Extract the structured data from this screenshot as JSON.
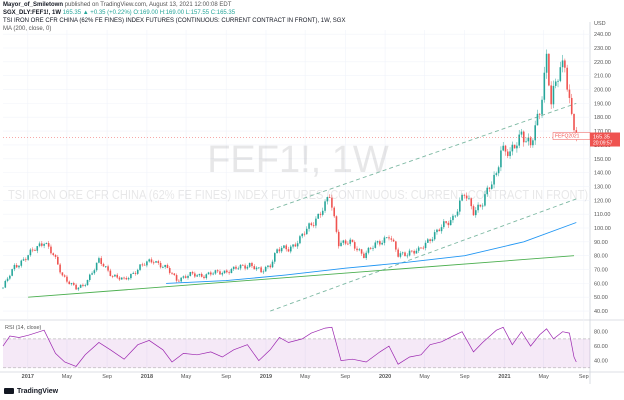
{
  "header": {
    "author": "Mayor_of_Smiletown",
    "published": "published on TradingView.com, August 13, 2021 12:00:08 EDT",
    "ticker_line": "SGX_DLY:FEF1!, 1W",
    "ohlc": "165.35 ▲ +0.35 (+0.22%) O:169.00 H:169.00 L:157.55 C:165.35",
    "title": "TSI IRON ORE CFR CHINA (62% FE FINES) INDEX FUTURES (CONTINUOUS: CURRENT CONTRACT IN FRONT), 1W, SGX",
    "ma_label": "MA (200, close, 0)",
    "rsi_label": "RSI (14, close)"
  },
  "watermark": {
    "symbol": "FEF1!, 1W",
    "name": "TSI IRON ORE CFR CHINA (62% FE FINES) INDEX FUTURES (CONTINUOUS: CURRENT CONTRACT IN FRONT)"
  },
  "footer": {
    "brand": "TradingView"
  },
  "chart_data": [
    {
      "type": "candlestick",
      "currency": "USD",
      "ylim": [
        35,
        243
      ],
      "yticks": [
        40,
        50,
        60,
        70,
        80,
        90,
        100,
        110,
        120,
        130,
        140,
        150,
        160,
        170,
        180,
        190,
        200,
        210,
        220,
        230,
        240
      ],
      "xlim": [
        "2016-10-17",
        "2021-09-20"
      ],
      "xticks": [
        {
          "label": "2017",
          "date": "2017-01-01"
        },
        {
          "label": "May",
          "date": "2017-05-01"
        },
        {
          "label": "Sep",
          "date": "2017-09-01"
        },
        {
          "label": "2018",
          "date": "2018-01-01"
        },
        {
          "label": "May",
          "date": "2018-05-01"
        },
        {
          "label": "Sep",
          "date": "2018-09-01"
        },
        {
          "label": "2019",
          "date": "2019-01-01"
        },
        {
          "label": "May",
          "date": "2019-05-01"
        },
        {
          "label": "Sep",
          "date": "2019-09-01"
        },
        {
          "label": "2020",
          "date": "2020-01-01"
        },
        {
          "label": "May",
          "date": "2020-05-01"
        },
        {
          "label": "Sep",
          "date": "2020-09-01"
        },
        {
          "label": "2021",
          "date": "2021-01-01"
        },
        {
          "label": "May",
          "date": "2021-05-01"
        },
        {
          "label": "Sep",
          "date": "2021-09-01"
        }
      ],
      "price_path": [
        [
          "2016-10-17",
          57
        ],
        [
          "2016-11-21",
          72
        ],
        [
          "2017-01-02",
          80
        ],
        [
          "2017-02-20",
          91
        ],
        [
          "2017-03-20",
          80
        ],
        [
          "2017-04-17",
          66
        ],
        [
          "2017-05-29",
          56
        ],
        [
          "2017-06-19",
          58
        ],
        [
          "2017-08-07",
          76
        ],
        [
          "2017-09-18",
          66
        ],
        [
          "2017-10-23",
          62
        ],
        [
          "2017-12-11",
          72
        ],
        [
          "2018-01-22",
          77
        ],
        [
          "2018-03-05",
          70
        ],
        [
          "2018-04-02",
          63
        ],
        [
          "2018-05-14",
          66
        ],
        [
          "2018-06-25",
          66
        ],
        [
          "2018-08-13",
          68
        ],
        [
          "2018-09-24",
          70
        ],
        [
          "2018-11-12",
          74
        ],
        [
          "2018-12-17",
          68
        ],
        [
          "2019-01-14",
          74
        ],
        [
          "2019-02-04",
          84
        ],
        [
          "2019-03-11",
          85
        ],
        [
          "2019-04-15",
          92
        ],
        [
          "2019-05-27",
          105
        ],
        [
          "2019-07-01",
          116
        ],
        [
          "2019-07-15",
          123
        ],
        [
          "2019-08-12",
          90
        ],
        [
          "2019-09-16",
          89
        ],
        [
          "2019-10-28",
          81
        ],
        [
          "2019-12-16",
          90
        ],
        [
          "2020-01-13",
          95
        ],
        [
          "2020-02-10",
          80
        ],
        [
          "2020-03-16",
          83
        ],
        [
          "2020-04-13",
          83
        ],
        [
          "2020-05-18",
          93
        ],
        [
          "2020-06-22",
          100
        ],
        [
          "2020-07-27",
          108
        ],
        [
          "2020-08-31",
          124
        ],
        [
          "2020-09-28",
          113
        ],
        [
          "2020-10-26",
          118
        ],
        [
          "2020-12-07",
          140
        ],
        [
          "2020-12-21",
          158
        ],
        [
          "2021-01-18",
          152
        ],
        [
          "2021-02-22",
          170
        ],
        [
          "2021-03-22",
          158
        ],
        [
          "2021-04-19",
          185
        ],
        [
          "2021-05-10",
          225
        ],
        [
          "2021-05-24",
          190
        ],
        [
          "2021-06-21",
          215
        ],
        [
          "2021-07-05",
          220
        ],
        [
          "2021-07-26",
          180
        ],
        [
          "2021-08-09",
          165.35
        ]
      ],
      "ma": {
        "label": "MA (200, close, 0)",
        "color": "#2196f3",
        "points": [
          [
            "2018-03-01",
            60
          ],
          [
            "2018-09-01",
            62
          ],
          [
            "2019-03-01",
            66
          ],
          [
            "2019-09-01",
            71
          ],
          [
            "2020-03-01",
            75
          ],
          [
            "2020-09-01",
            80
          ],
          [
            "2021-03-01",
            90
          ],
          [
            "2021-08-09",
            104
          ]
        ]
      },
      "trendlines": [
        {
          "style": "solid",
          "color": "#4caf50",
          "from": [
            "2017-01-02",
            50
          ],
          "to": [
            "2021-08-02",
            80
          ]
        },
        {
          "style": "dashed",
          "color": "#7cb8a2",
          "from": [
            "2019-01-14",
            113
          ],
          "to": [
            "2021-08-09",
            190
          ]
        },
        {
          "style": "dashed",
          "color": "#7cb8a2",
          "from": [
            "2019-01-14",
            40
          ],
          "to": [
            "2021-08-09",
            121
          ]
        }
      ],
      "last_price": {
        "label": "FEFQ2021",
        "value": "165.35",
        "countdown": "20:09:57",
        "color": "#ef5350"
      }
    },
    {
      "type": "line",
      "label": "RSI (14, close)",
      "ylim": [
        27,
        92
      ],
      "yticks": [
        40,
        60,
        80
      ],
      "band": [
        30,
        70
      ],
      "color": "#9c27b0",
      "points": [
        [
          "2016-10-17",
          60
        ],
        [
          "2016-11-07",
          74
        ],
        [
          "2016-12-05",
          72
        ],
        [
          "2017-01-02",
          75
        ],
        [
          "2017-02-06",
          80
        ],
        [
          "2017-02-20",
          82
        ],
        [
          "2017-03-27",
          50
        ],
        [
          "2017-04-24",
          38
        ],
        [
          "2017-05-29",
          32
        ],
        [
          "2017-06-26",
          48
        ],
        [
          "2017-08-07",
          65
        ],
        [
          "2017-09-11",
          55
        ],
        [
          "2017-10-23",
          42
        ],
        [
          "2017-12-04",
          62
        ],
        [
          "2018-01-08",
          68
        ],
        [
          "2018-02-19",
          55
        ],
        [
          "2018-03-19",
          38
        ],
        [
          "2018-04-23",
          50
        ],
        [
          "2018-06-04",
          48
        ],
        [
          "2018-07-16",
          52
        ],
        [
          "2018-08-20",
          45
        ],
        [
          "2018-09-24",
          55
        ],
        [
          "2018-11-05",
          62
        ],
        [
          "2018-12-10",
          40
        ],
        [
          "2019-01-14",
          55
        ],
        [
          "2019-02-11",
          72
        ],
        [
          "2019-03-11",
          65
        ],
        [
          "2019-04-22",
          70
        ],
        [
          "2019-05-20",
          78
        ],
        [
          "2019-07-01",
          85
        ],
        [
          "2019-07-22",
          86
        ],
        [
          "2019-08-19",
          40
        ],
        [
          "2019-09-23",
          42
        ],
        [
          "2019-11-04",
          38
        ],
        [
          "2019-12-16",
          52
        ],
        [
          "2020-01-13",
          60
        ],
        [
          "2020-02-10",
          35
        ],
        [
          "2020-03-16",
          45
        ],
        [
          "2020-04-20",
          48
        ],
        [
          "2020-05-18",
          62
        ],
        [
          "2020-06-22",
          66
        ],
        [
          "2020-07-27",
          74
        ],
        [
          "2020-08-24",
          80
        ],
        [
          "2020-09-28",
          52
        ],
        [
          "2020-10-26",
          65
        ],
        [
          "2020-12-07",
          82
        ],
        [
          "2020-12-28",
          86
        ],
        [
          "2021-01-25",
          62
        ],
        [
          "2021-02-22",
          80
        ],
        [
          "2021-03-22",
          60
        ],
        [
          "2021-04-19",
          76
        ],
        [
          "2021-05-10",
          84
        ],
        [
          "2021-05-31",
          70
        ],
        [
          "2021-06-28",
          80
        ],
        [
          "2021-07-19",
          78
        ],
        [
          "2021-08-02",
          45
        ],
        [
          "2021-08-09",
          38
        ]
      ]
    }
  ]
}
